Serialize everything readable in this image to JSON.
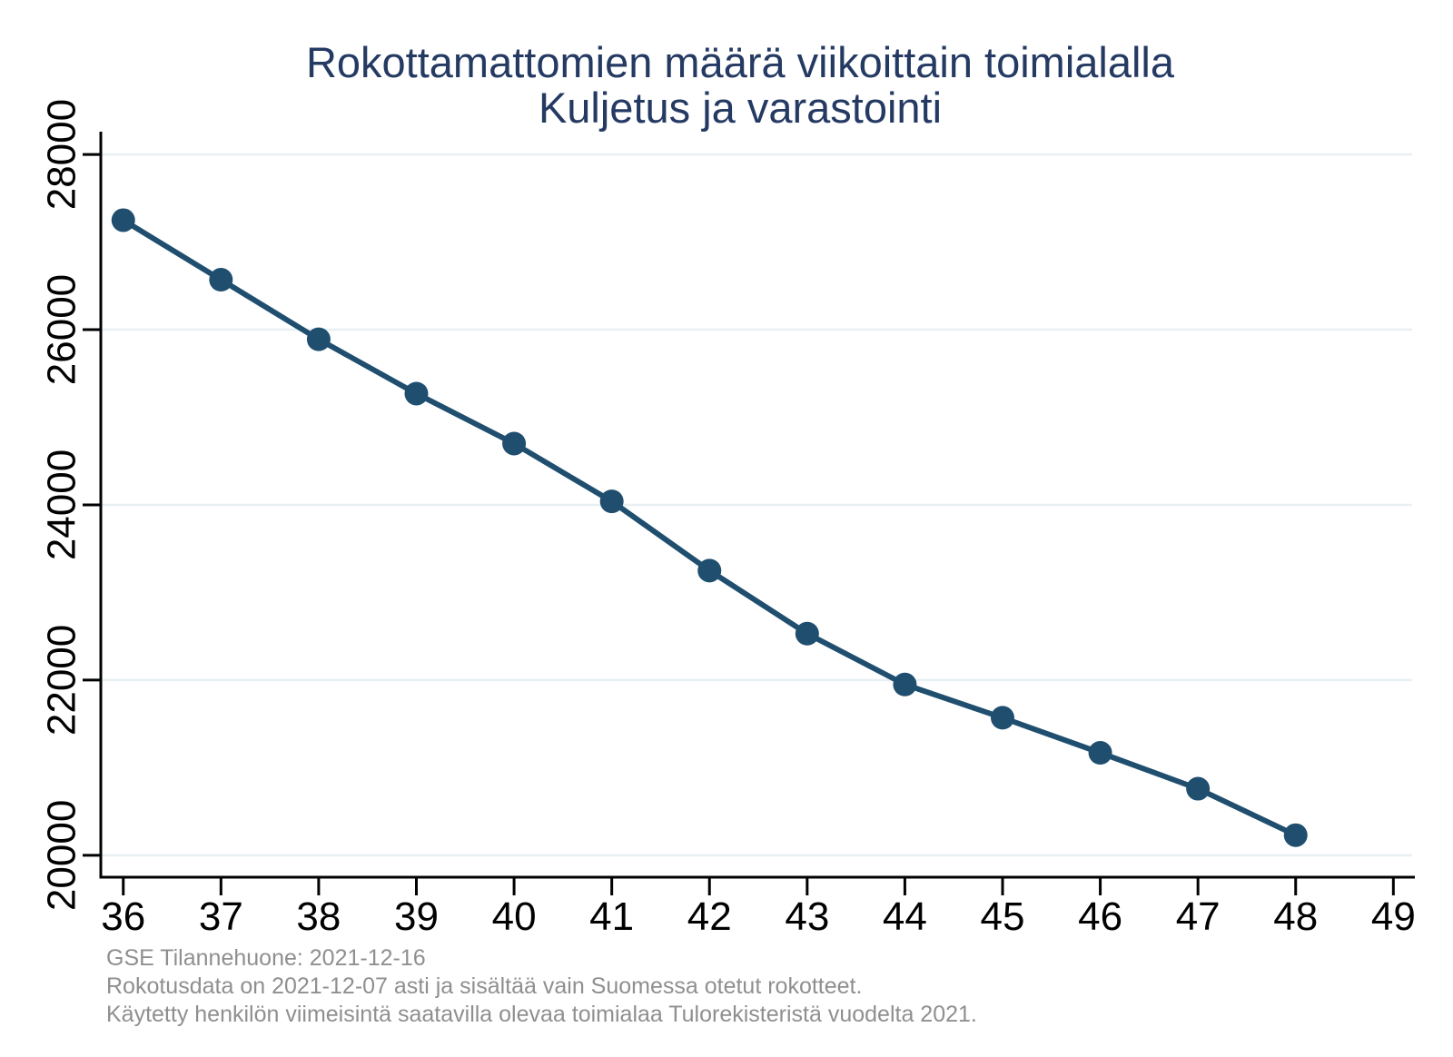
{
  "title": {
    "line1": "Rokottamattomien määrä viikoittain toimialalla",
    "line2": "Kuljetus ja varastointi"
  },
  "footnotes": [
    "GSE Tilannehuone: 2021-12-16",
    "Rokotusdata on 2021-12-07 asti ja sisältää vain Suomessa otetut rokotteet.",
    "Käytetty henkilön viimeisintä saatavilla olevaa toimialaa Tulorekisteristä vuodelta 2021."
  ],
  "colors": {
    "line": "#1f4e6f",
    "marker": "#1f4e6f",
    "title": "#253a63",
    "footnote": "#8f8f8f",
    "grid": "#e8f0f3",
    "axis": "#000000",
    "tick_label": "#000000",
    "background": "#ffffff"
  },
  "chart_data": {
    "type": "line",
    "title": "Rokottamattomien määrä viikoittain toimialalla Kuljetus ja varastointi",
    "x": [
      36,
      37,
      38,
      39,
      40,
      41,
      42,
      43,
      44,
      45,
      46,
      47,
      48
    ],
    "values": [
      27250,
      26570,
      25890,
      25270,
      24700,
      24040,
      23250,
      22530,
      21950,
      21570,
      21170,
      20760,
      20230
    ],
    "xlabel": "",
    "ylabel": "",
    "xticks": [
      36,
      37,
      38,
      39,
      40,
      41,
      42,
      43,
      44,
      45,
      46,
      47,
      48,
      49
    ],
    "yticks": [
      20000,
      22000,
      24000,
      26000,
      28000
    ],
    "xlim": [
      35.77,
      49.22
    ],
    "ylim": [
      19750,
      28260
    ],
    "grid": true,
    "legend": "none",
    "marker": "circle"
  }
}
